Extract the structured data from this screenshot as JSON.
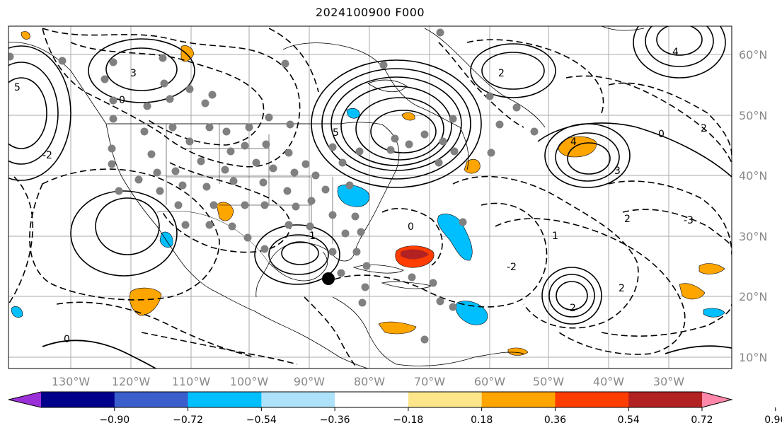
{
  "title": "2024100900 F000",
  "map": {
    "lat_labels": [
      "60°N",
      "50°N",
      "40°N",
      "30°N",
      "20°N",
      "10°N"
    ],
    "lon_labels": [
      "130°W",
      "120°W",
      "110°W",
      "100°W",
      "90°W",
      "80°W",
      "70°W",
      "60°W",
      "50°W",
      "40°W",
      "30°W"
    ],
    "contour_labels": [
      "0",
      "2",
      "3",
      "5",
      "-1",
      "-2",
      "-3",
      "4",
      "1"
    ],
    "colors": {
      "grid": "#aaaaaa",
      "contour": "#000000",
      "station": "#808080",
      "storm_marker": "#000000"
    }
  },
  "colorbar": {
    "ticks": [
      "−0.90",
      "−0.72",
      "−0.54",
      "−0.36",
      "−0.18",
      "0.18",
      "0.36",
      "0.54",
      "0.72",
      "0.90"
    ],
    "colors": [
      "#9b30d9",
      "#00008b",
      "#3a5fcd",
      "#00bfff",
      "#aee2fa",
      "#ffffff",
      "#fde68a",
      "#ffa500",
      "#ff3d00",
      "#b22222",
      "#ff88aa"
    ]
  }
}
